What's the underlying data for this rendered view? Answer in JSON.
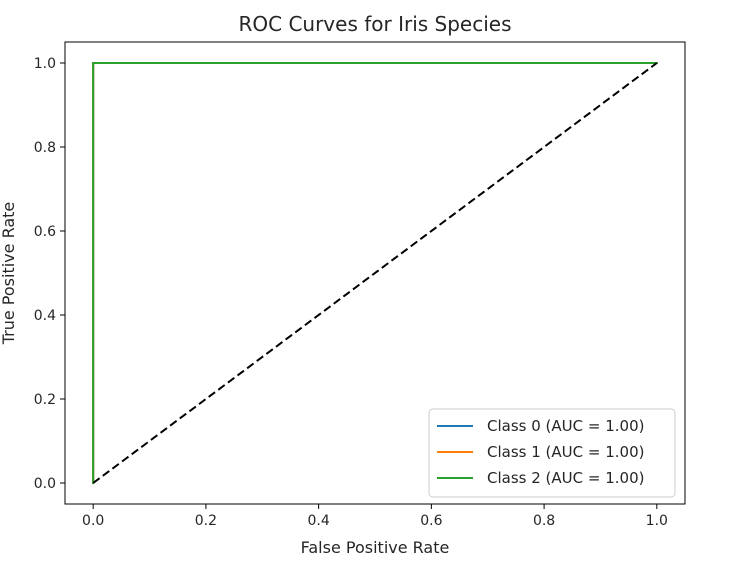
{
  "chart_data": {
    "type": "line",
    "title": "ROC Curves for Iris Species",
    "xlabel": "False Positive Rate",
    "ylabel": "True Positive Rate",
    "xlim": [
      -0.05,
      1.05
    ],
    "ylim": [
      -0.05,
      1.05
    ],
    "xticks": [
      "0.0",
      "0.2",
      "0.4",
      "0.6",
      "0.8",
      "1.0"
    ],
    "yticks": [
      "0.0",
      "0.2",
      "0.4",
      "0.6",
      "0.8",
      "1.0"
    ],
    "grid": false,
    "legend_position": "lower-right",
    "series": [
      {
        "name": "Class 0 (AUC = 1.00)",
        "color": "#1f77b4",
        "x": [
          0,
          0,
          1
        ],
        "y": [
          0,
          1,
          1
        ]
      },
      {
        "name": "Class 1 (AUC = 1.00)",
        "color": "#ff7f0e",
        "x": [
          0,
          0,
          1
        ],
        "y": [
          0,
          1,
          1
        ]
      },
      {
        "name": "Class 2 (AUC = 1.00)",
        "color": "#2ca02c",
        "x": [
          0,
          0,
          1
        ],
        "y": [
          0,
          1,
          1
        ]
      }
    ],
    "reference_line": {
      "color": "#000000",
      "style": "dashed",
      "x": [
        0,
        1
      ],
      "y": [
        0,
        1
      ]
    }
  }
}
